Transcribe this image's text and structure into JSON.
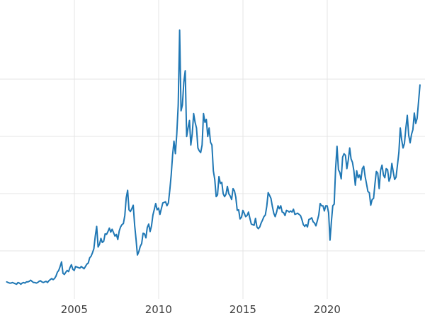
{
  "chart_data": {
    "type": "line",
    "title": "",
    "xlabel": "",
    "ylabel": "",
    "legend": "none",
    "grid": "on",
    "line_color": "#1f77b4",
    "grid_color": "#e4e4e4",
    "tick_label_color": "#3d3d3d",
    "background_color": "#ffffff",
    "x_ticks": [
      2005,
      2010,
      2015,
      2020
    ],
    "x_tick_labels": [
      "2005",
      "2010",
      "2015",
      "2020"
    ],
    "y_gridlines": [
      10,
      20,
      30,
      40
    ],
    "xlim": [
      2000.6,
      2025.8
    ],
    "ylim": [
      2,
      52
    ],
    "x_start": 2001.0,
    "x_step": 0.0833333,
    "x_unit": "year (monthly samples)",
    "values": [
      4.6,
      4.5,
      4.4,
      4.4,
      4.5,
      4.4,
      4.3,
      4.2,
      4.5,
      4.4,
      4.2,
      4.4,
      4.5,
      4.4,
      4.6,
      4.6,
      4.7,
      4.9,
      4.7,
      4.5,
      4.5,
      4.4,
      4.5,
      4.7,
      4.8,
      4.6,
      4.5,
      4.6,
      4.7,
      4.5,
      4.8,
      5.0,
      5.2,
      5.0,
      5.2,
      5.6,
      6.3,
      6.6,
      7.3,
      8.1,
      6.1,
      5.9,
      6.3,
      6.6,
      6.4,
      7.1,
      7.6,
      6.8,
      6.6,
      7.3,
      7.2,
      7.1,
      7.0,
      7.3,
      7.1,
      6.9,
      7.3,
      7.7,
      7.9,
      8.8,
      9.1,
      9.7,
      10.4,
      12.6,
      14.3,
      10.7,
      11.2,
      12.2,
      11.5,
      11.7,
      13.0,
      12.9,
      13.4,
      14.0,
      13.3,
      13.8,
      13.2,
      12.6,
      12.9,
      12.0,
      13.5,
      14.2,
      14.6,
      14.8,
      16.2,
      19.3,
      20.6,
      17.2,
      16.9,
      17.4,
      18.0,
      14.5,
      12.0,
      9.3,
      9.9,
      10.8,
      11.3,
      13.1,
      13.0,
      12.3,
      14.1,
      14.7,
      13.4,
      14.4,
      16.3,
      17.3,
      18.3,
      17.2,
      17.5,
      16.4,
      17.4,
      18.4,
      18.5,
      18.6,
      17.9,
      18.4,
      20.6,
      23.3,
      26.8,
      29.2,
      27.0,
      30.5,
      35.5,
      48.6,
      34.5,
      35.5,
      39.5,
      41.5,
      30.0,
      31.5,
      32.8,
      28.5,
      30.5,
      34.0,
      32.5,
      31.5,
      28.0,
      27.5,
      27.2,
      28.5,
      34.0,
      32.5,
      33.0,
      30.0,
      31.5,
      29.0,
      28.5,
      24.0,
      22.5,
      19.5,
      19.8,
      23.0,
      21.8,
      22.0,
      20.0,
      19.5,
      19.9,
      21.3,
      20.0,
      19.6,
      19.0,
      20.9,
      20.5,
      19.4,
      17.1,
      17.2,
      15.6,
      15.9,
      17.1,
      16.6,
      16.0,
      16.2,
      16.8,
      15.7,
      14.7,
      14.6,
      14.5,
      15.7,
      14.2,
      13.9,
      14.2,
      14.9,
      15.4,
      16.0,
      16.3,
      17.8,
      20.2,
      19.7,
      19.2,
      17.8,
      16.6,
      16.0,
      16.8,
      17.9,
      17.4,
      17.9,
      16.8,
      16.7,
      16.2,
      17.1,
      17.0,
      16.8,
      17.0,
      16.8,
      17.3,
      16.4,
      16.5,
      16.6,
      16.4,
      16.2,
      15.5,
      14.6,
      14.3,
      14.6,
      14.2,
      15.5,
      15.6,
      15.8,
      15.1,
      14.9,
      14.4,
      15.3,
      16.3,
      18.3,
      17.9,
      17.9,
      17.0,
      17.9,
      17.9,
      16.7,
      11.9,
      15.2,
      17.9,
      18.2,
      24.4,
      28.3,
      24.2,
      23.7,
      22.6,
      26.4,
      27.0,
      26.7,
      24.4,
      25.9,
      28.0,
      26.1,
      25.5,
      24.0,
      21.5,
      24.0,
      22.8,
      23.3,
      22.4,
      24.4,
      24.8,
      23.0,
      21.7,
      20.4,
      20.2,
      18.0,
      19.0,
      19.2,
      21.8,
      23.9,
      23.6,
      20.9,
      24.1,
      25.0,
      23.3,
      22.8,
      24.4,
      24.2,
      22.2,
      22.9,
      25.3,
      23.8,
      22.5,
      22.9,
      25.0,
      27.2,
      31.5,
      29.4,
      28.0,
      28.8,
      31.5,
      33.7,
      30.2,
      28.9,
      30.4,
      31.2,
      34.1,
      32.3,
      33.2,
      36.1,
      39.0
    ]
  }
}
